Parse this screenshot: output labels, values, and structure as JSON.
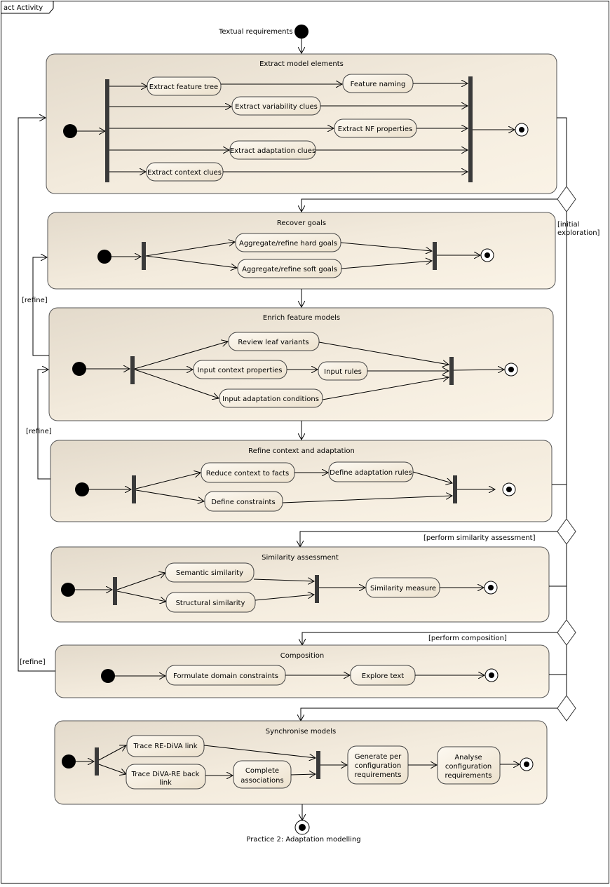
{
  "frame_tab": "act Activity",
  "start_label": "Textual requirements",
  "end_label": "Practice 2: Adaptation modelling",
  "guards": {
    "initial": "[initial\nexploration]",
    "similarity": "[perform similarity assessment]",
    "composition": "[perform composition]",
    "refine1": "[refine]",
    "refine2": "[refine]",
    "refine3": "[refine]"
  },
  "activities": {
    "extract": {
      "title": "Extract model elements",
      "nodes": {
        "feature_tree": "Extract feature tree",
        "feature_naming": "Feature naming",
        "variability": "Extract variability clues",
        "nf_props": "Extract NF properties",
        "adaptation": "Extract adaptation clues",
        "context": "Extract context clues"
      }
    },
    "goals": {
      "title": "Recover goals",
      "nodes": {
        "hard": "Aggregate/refine hard goals",
        "soft": "Aggregate/refine soft goals"
      }
    },
    "enrich": {
      "title": "Enrich feature models",
      "nodes": {
        "leaf": "Review leaf variants",
        "ctx_props": "Input context properties",
        "rules": "Input rules",
        "adapt_cond": "Input adaptation conditions"
      }
    },
    "refine": {
      "title": "Refine context and adaptation",
      "nodes": {
        "reduce": "Reduce context to facts",
        "define_rules": "Define adaptation rules",
        "constraints": "Define constraints"
      }
    },
    "similarity": {
      "title": "Similarity assessment",
      "nodes": {
        "semantic": "Semantic similarity",
        "structural": "Structural similarity",
        "measure": "Similarity measure"
      }
    },
    "composition": {
      "title": "Composition",
      "nodes": {
        "formulate": "Formulate domain constraints",
        "explore": "Explore text"
      }
    },
    "sync": {
      "title": "Synchronise models",
      "nodes": {
        "trace1": "Trace RE-DiVA link",
        "trace2_l1": "Trace DiVA-RE back",
        "trace2_l2": "link",
        "complete_l1": "Complete",
        "complete_l2": "associations",
        "generate_l1": "Generate per",
        "generate_l2": "configuration",
        "generate_l3": "requirements",
        "analyse_l1": "Analyse",
        "analyse_l2": "configuration",
        "analyse_l3": "requirements"
      }
    }
  }
}
